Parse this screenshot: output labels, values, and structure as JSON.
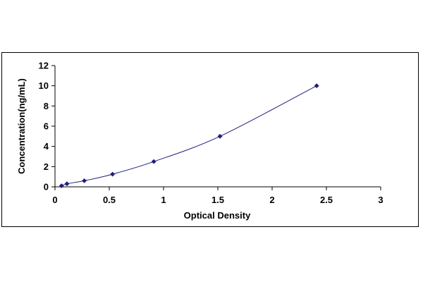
{
  "chart_data": {
    "type": "scatter",
    "xlabel": "Optical Density",
    "ylabel": "Concentration(ng/mL)",
    "xlim": [
      0,
      3
    ],
    "ylim": [
      0,
      12
    ],
    "x_ticks": [
      "0",
      "0.5",
      "1",
      "1.5",
      "2",
      "2.5",
      "3"
    ],
    "y_ticks": [
      "0",
      "2",
      "4",
      "6",
      "8",
      "10",
      "12"
    ],
    "grid": false,
    "legend": "none",
    "series": [
      {
        "points": [
          {
            "x": 0.06,
            "y": 0.1
          },
          {
            "x": 0.11,
            "y": 0.3
          },
          {
            "x": 0.27,
            "y": 0.6
          },
          {
            "x": 0.53,
            "y": 1.25
          },
          {
            "x": 0.91,
            "y": 2.5
          },
          {
            "x": 1.52,
            "y": 5
          },
          {
            "x": 2.41,
            "y": 10
          }
        ],
        "color": "#1f1f7a",
        "marker": "diamond",
        "fit_line": "smooth"
      }
    ]
  }
}
